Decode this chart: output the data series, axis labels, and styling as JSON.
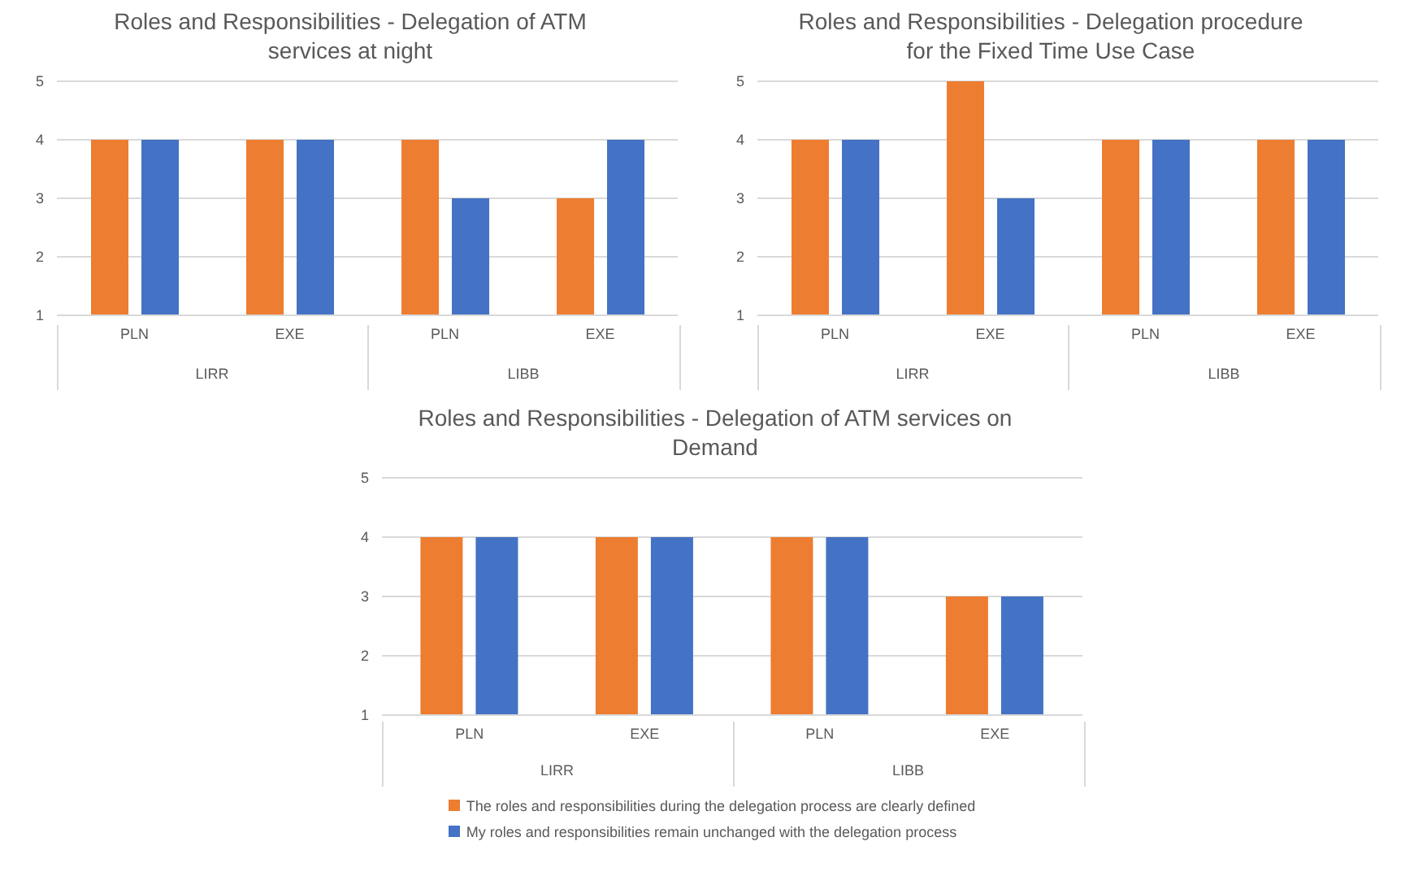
{
  "chart_data": [
    {
      "type": "bar",
      "title": "Roles and Responsibilities - Delegation of ATM services at night",
      "categories": [
        "PLN",
        "EXE",
        "PLN",
        "EXE"
      ],
      "annotations": [
        "LIRR",
        "LIBB"
      ],
      "ylim": [
        1,
        5
      ],
      "yticks": [
        1,
        2,
        3,
        4,
        5
      ],
      "grid": "y",
      "legend": false,
      "series": [
        {
          "color": "#ed7d31",
          "values": [
            4,
            4,
            4,
            3
          ]
        },
        {
          "color": "#4472c4",
          "values": [
            4,
            4,
            3,
            4
          ]
        }
      ]
    },
    {
      "type": "bar",
      "title": "Roles and Responsibilities - Delegation procedure for the Fixed Time Use Case",
      "categories": [
        "PLN",
        "EXE",
        "PLN",
        "EXE"
      ],
      "annotations": [
        "LIRR",
        "LIBB"
      ],
      "ylim": [
        1,
        5
      ],
      "yticks": [
        1,
        2,
        3,
        4,
        5
      ],
      "grid": "y",
      "legend": false,
      "series": [
        {
          "color": "#ed7d31",
          "values": [
            4,
            5,
            4,
            4
          ]
        },
        {
          "color": "#4472c4",
          "values": [
            4,
            3,
            4,
            4
          ]
        }
      ]
    },
    {
      "type": "bar",
      "title": "Roles and Responsibilities - Delegation of ATM services on Demand",
      "categories": [
        "PLN",
        "EXE",
        "PLN",
        "EXE"
      ],
      "annotations": [
        "LIRR",
        "LIBB"
      ],
      "ylim": [
        1,
        5
      ],
      "yticks": [
        1,
        2,
        3,
        4,
        5
      ],
      "grid": "y",
      "legend": "bottom",
      "series": [
        {
          "name": "The roles and responsibilities during the delegation process are clearly defined",
          "color": "#ed7d31",
          "values": [
            4,
            4,
            4,
            3
          ]
        },
        {
          "name": "My roles and responsibilities remain unchanged with the delegation process",
          "color": "#4472c4",
          "values": [
            4,
            4,
            4,
            3
          ]
        }
      ]
    }
  ]
}
